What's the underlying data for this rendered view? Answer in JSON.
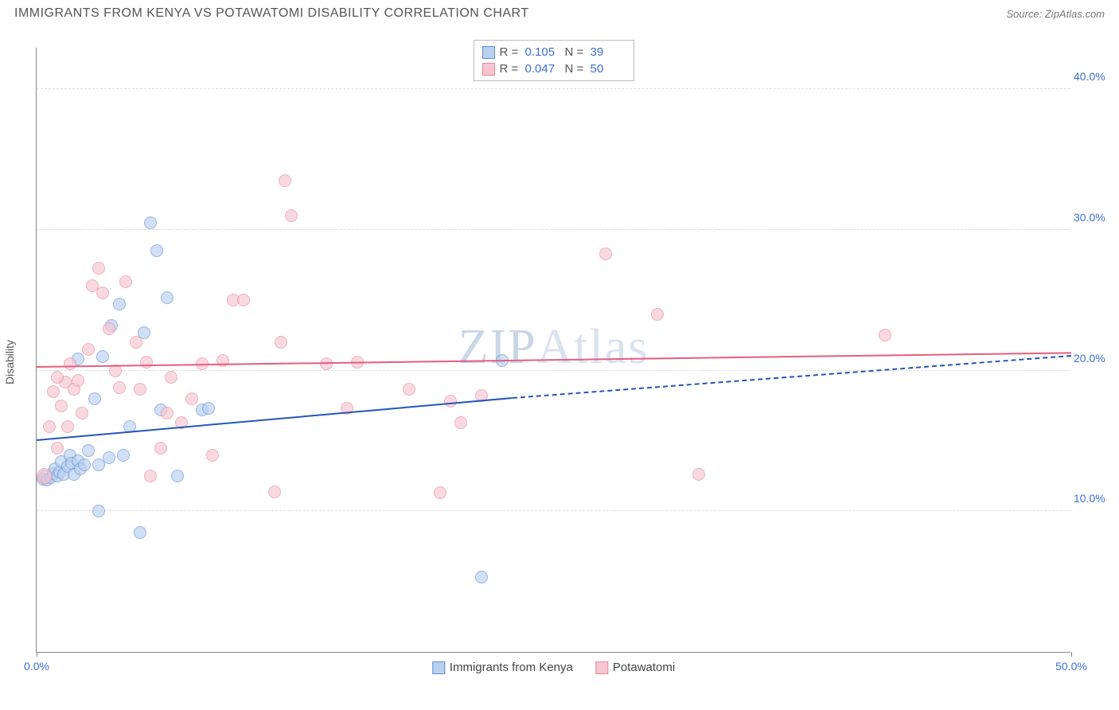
{
  "header": {
    "title": "IMMIGRANTS FROM KENYA VS POTAWATOMI DISABILITY CORRELATION CHART",
    "source": "Source: ZipAtlas.com"
  },
  "chart": {
    "type": "scatter",
    "ylabel": "Disability",
    "watermark": "ZIPAtlas",
    "background_color": "#ffffff",
    "grid_color": "#dddddd",
    "axis_color": "#888888",
    "tick_label_color": "#3b6fd6",
    "xlim": [
      0,
      50
    ],
    "ylim": [
      0,
      43
    ],
    "xtick_labels": [
      "0.0%",
      "50.0%"
    ],
    "xtick_positions": [
      0,
      50
    ],
    "ytick_labels": [
      "10.0%",
      "20.0%",
      "30.0%",
      "40.0%"
    ],
    "ytick_positions": [
      10,
      20,
      30,
      40
    ],
    "series": [
      {
        "name": "Immigrants from Kenya",
        "fill": "#b9d0ef",
        "stroke": "#5f8fd8",
        "trend_color": "#2456b8",
        "r_value": "0.105",
        "n_value": "39",
        "trend": {
          "x1": 0,
          "y1": 15,
          "x2": 23,
          "y2": 18,
          "x2_dash_end": 50,
          "y2_dash_end": 21
        },
        "points": [
          {
            "x": 0.3,
            "y": 12.3
          },
          {
            "x": 0.4,
            "y": 12.5
          },
          {
            "x": 0.5,
            "y": 12.2
          },
          {
            "x": 0.7,
            "y": 12.4
          },
          {
            "x": 0.8,
            "y": 12.7
          },
          {
            "x": 0.9,
            "y": 13.0
          },
          {
            "x": 1.0,
            "y": 12.5
          },
          {
            "x": 1.1,
            "y": 12.8
          },
          {
            "x": 1.2,
            "y": 13.5
          },
          {
            "x": 1.3,
            "y": 12.6
          },
          {
            "x": 1.5,
            "y": 13.2
          },
          {
            "x": 1.6,
            "y": 14.0
          },
          {
            "x": 1.7,
            "y": 13.4
          },
          {
            "x": 1.8,
            "y": 12.6
          },
          {
            "x": 2.0,
            "y": 13.6
          },
          {
            "x": 2.1,
            "y": 13.0
          },
          {
            "x": 2.3,
            "y": 13.3
          },
          {
            "x": 2.5,
            "y": 14.3
          },
          {
            "x": 2.8,
            "y": 18.0
          },
          {
            "x": 3.0,
            "y": 13.3
          },
          {
            "x": 3.2,
            "y": 21.0
          },
          {
            "x": 3.5,
            "y": 13.8
          },
          {
            "x": 3.6,
            "y": 23.2
          },
          {
            "x": 4.0,
            "y": 24.7
          },
          {
            "x": 4.2,
            "y": 14.0
          },
          {
            "x": 4.5,
            "y": 16.0
          },
          {
            "x": 5.0,
            "y": 8.5
          },
          {
            "x": 5.2,
            "y": 22.7
          },
          {
            "x": 5.5,
            "y": 30.5
          },
          {
            "x": 5.8,
            "y": 28.5
          },
          {
            "x": 6.0,
            "y": 17.2
          },
          {
            "x": 6.3,
            "y": 25.2
          },
          {
            "x": 6.8,
            "y": 12.5
          },
          {
            "x": 8.0,
            "y": 17.2
          },
          {
            "x": 8.3,
            "y": 17.3
          },
          {
            "x": 3.0,
            "y": 10.0
          },
          {
            "x": 21.5,
            "y": 5.3
          },
          {
            "x": 2.0,
            "y": 20.8
          },
          {
            "x": 22.5,
            "y": 20.7
          }
        ]
      },
      {
        "name": "Potawatomi",
        "fill": "#f6c6d0",
        "stroke": "#e9859b",
        "trend_color": "#e45e7e",
        "r_value": "0.047",
        "n_value": "50",
        "trend": {
          "x1": 0,
          "y1": 20.2,
          "x2": 50,
          "y2": 21.2
        },
        "points": [
          {
            "x": 0.4,
            "y": 12.5,
            "large": true
          },
          {
            "x": 0.6,
            "y": 16.0
          },
          {
            "x": 0.8,
            "y": 18.5
          },
          {
            "x": 1.0,
            "y": 14.5
          },
          {
            "x": 1.2,
            "y": 17.5
          },
          {
            "x": 1.4,
            "y": 19.2
          },
          {
            "x": 1.5,
            "y": 16.0
          },
          {
            "x": 1.6,
            "y": 20.5
          },
          {
            "x": 1.8,
            "y": 18.7
          },
          {
            "x": 2.0,
            "y": 19.3
          },
          {
            "x": 2.2,
            "y": 17.0
          },
          {
            "x": 2.5,
            "y": 21.5
          },
          {
            "x": 2.7,
            "y": 26.0
          },
          {
            "x": 3.0,
            "y": 27.3
          },
          {
            "x": 3.2,
            "y": 25.5
          },
          {
            "x": 3.5,
            "y": 23.0
          },
          {
            "x": 3.8,
            "y": 20.0
          },
          {
            "x": 4.0,
            "y": 18.8
          },
          {
            "x": 4.3,
            "y": 26.3
          },
          {
            "x": 4.8,
            "y": 22.0
          },
          {
            "x": 5.0,
            "y": 18.7
          },
          {
            "x": 5.3,
            "y": 20.6
          },
          {
            "x": 5.5,
            "y": 12.5
          },
          {
            "x": 6.0,
            "y": 14.5
          },
          {
            "x": 6.3,
            "y": 17.0
          },
          {
            "x": 6.5,
            "y": 19.5
          },
          {
            "x": 7.0,
            "y": 16.3
          },
          {
            "x": 7.5,
            "y": 18.0
          },
          {
            "x": 8.0,
            "y": 20.5
          },
          {
            "x": 8.5,
            "y": 14.0
          },
          {
            "x": 9.0,
            "y": 20.7
          },
          {
            "x": 9.5,
            "y": 25.0
          },
          {
            "x": 10.0,
            "y": 25.0
          },
          {
            "x": 11.5,
            "y": 11.4
          },
          {
            "x": 11.8,
            "y": 22.0
          },
          {
            "x": 12.0,
            "y": 33.5
          },
          {
            "x": 12.3,
            "y": 31.0
          },
          {
            "x": 14.0,
            "y": 20.5
          },
          {
            "x": 15.0,
            "y": 17.3
          },
          {
            "x": 15.5,
            "y": 20.6
          },
          {
            "x": 18.0,
            "y": 18.7
          },
          {
            "x": 19.5,
            "y": 11.3
          },
          {
            "x": 20.0,
            "y": 17.8
          },
          {
            "x": 20.5,
            "y": 16.3
          },
          {
            "x": 21.5,
            "y": 18.2
          },
          {
            "x": 27.5,
            "y": 28.3
          },
          {
            "x": 30.0,
            "y": 24.0
          },
          {
            "x": 32.0,
            "y": 12.6
          },
          {
            "x": 41.0,
            "y": 22.5
          },
          {
            "x": 1.0,
            "y": 19.5
          }
        ]
      }
    ],
    "legend_labels": {
      "series1": "Immigrants from Kenya",
      "series2": "Potawatomi"
    }
  }
}
